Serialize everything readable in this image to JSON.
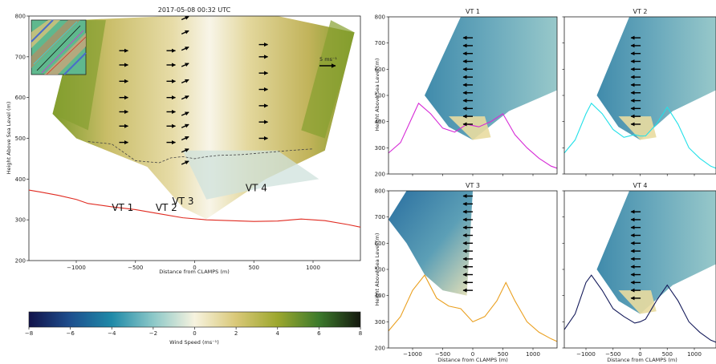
{
  "chart_data": [
    {
      "type": "heatmap",
      "title": "2017-05-08 00:32 UTC",
      "xlabel": "Distance from CLAMPS (m)",
      "ylabel": "Height Above Sea Level (m)",
      "xlim": [
        -1400,
        1400
      ],
      "ylim": [
        200,
        800
      ],
      "xticks": [
        -1000,
        -500,
        0,
        500,
        1000
      ],
      "yticks": [
        200,
        300,
        400,
        500,
        600,
        700,
        800
      ],
      "annotations": [
        "VT 1",
        "VT 2",
        "VT 3",
        "VT 4"
      ],
      "ref_arrow_label": "5 ms⁻¹",
      "terrain_line": {
        "color": "#e02a20",
        "x": [
          -1400,
          -1300,
          -1150,
          -1000,
          -900,
          -700,
          -500,
          -300,
          -100,
          100,
          300,
          500,
          700,
          900,
          1100,
          1300,
          1400
        ],
        "y": [
          373,
          368,
          360,
          350,
          340,
          332,
          325,
          315,
          305,
          300,
          298,
          296,
          297,
          302,
          298,
          288,
          282
        ]
      },
      "dashed_line": {
        "x": [
          -900,
          -700,
          -500,
          -300,
          -200,
          -100,
          0,
          100,
          200,
          400,
          600,
          800,
          1000
        ],
        "y": [
          492,
          486,
          445,
          440,
          452,
          455,
          450,
          455,
          458,
          460,
          465,
          470,
          474
        ]
      },
      "vectors": [
        {
          "x": -600,
          "y": [
            490,
            530,
            565,
            600,
            640,
            680,
            715
          ],
          "direction": "east"
        },
        {
          "x": -200,
          "y": [
            490,
            530,
            565,
            600,
            640,
            680,
            715
          ],
          "direction": "east"
        },
        {
          "x": -80,
          "y": [
            440,
            470,
            500,
            530,
            560,
            600,
            640,
            680,
            720,
            760,
            795
          ],
          "direction": "northeast"
        },
        {
          "x": 580,
          "y": [
            500,
            540,
            580,
            620,
            660,
            700,
            730
          ],
          "direction": "east"
        }
      ]
    },
    {
      "type": "heatmap",
      "title": "VT 1",
      "xlabel": "Distance from CLAMPS (m)",
      "ylabel": "Height Above Sea Level (m)",
      "xlim": [
        -1400,
        1400
      ],
      "ylim": [
        200,
        800
      ],
      "yticks": [
        200,
        300,
        400,
        500,
        600,
        700,
        800
      ],
      "terrain_line": {
        "color": "#d62ad6",
        "x": [
          -1400,
          -1200,
          -1000,
          -900,
          -700,
          -500,
          -300,
          -100,
          0,
          100,
          300,
          500,
          700,
          900,
          1100,
          1300,
          1400
        ],
        "y": [
          280,
          320,
          420,
          470,
          430,
          375,
          360,
          390,
          385,
          380,
          400,
          430,
          350,
          300,
          260,
          230,
          222
        ]
      }
    },
    {
      "type": "heatmap",
      "title": "VT 2",
      "xlim": [
        -1400,
        1400
      ],
      "ylim": [
        200,
        800
      ],
      "terrain_line": {
        "color": "#22e0e8",
        "x": [
          -1400,
          -1200,
          -1000,
          -900,
          -700,
          -500,
          -300,
          -100,
          0,
          100,
          300,
          500,
          700,
          900,
          1100,
          1300,
          1400
        ],
        "y": [
          280,
          330,
          430,
          470,
          430,
          370,
          340,
          350,
          345,
          345,
          390,
          455,
          390,
          300,
          260,
          230,
          222
        ]
      }
    },
    {
      "type": "heatmap",
      "title": "VT 3",
      "xlabel": "Distance from CLAMPS (m)",
      "ylabel": "Height Above Sea Level (m)",
      "xlim": [
        -1400,
        1400
      ],
      "ylim": [
        200,
        800
      ],
      "xticks": [
        -1000,
        -500,
        0,
        500,
        1000
      ],
      "yticks": [
        200,
        300,
        400,
        500,
        600,
        700,
        800
      ],
      "terrain_line": {
        "color": "#eaa020",
        "x": [
          -1400,
          -1200,
          -1000,
          -800,
          -600,
          -400,
          -200,
          0,
          200,
          400,
          550,
          700,
          900,
          1100,
          1300,
          1400
        ],
        "y": [
          265,
          320,
          420,
          478,
          390,
          360,
          350,
          300,
          320,
          380,
          450,
          380,
          300,
          260,
          235,
          225
        ]
      }
    },
    {
      "type": "heatmap",
      "title": "VT 4",
      "xlabel": "Distance from CLAMPS (m)",
      "xlim": [
        -1400,
        1400
      ],
      "ylim": [
        200,
        800
      ],
      "xticks": [
        -1000,
        -500,
        0,
        500,
        1000
      ],
      "terrain_line": {
        "color": "#141a5a",
        "x": [
          -1400,
          -1200,
          -1000,
          -900,
          -700,
          -500,
          -300,
          -100,
          0,
          100,
          300,
          500,
          700,
          900,
          1100,
          1300,
          1400
        ],
        "y": [
          270,
          330,
          450,
          478,
          420,
          350,
          320,
          295,
          300,
          310,
          380,
          440,
          380,
          300,
          260,
          230,
          222
        ]
      }
    }
  ],
  "colorbar": {
    "label": "Wind Speed (ms⁻¹)",
    "range": [
      -8,
      8
    ],
    "ticks": [
      -8,
      -6,
      -4,
      -2,
      0,
      2,
      4,
      6,
      8
    ],
    "colors": [
      "#11124a",
      "#1e4f8e",
      "#1f8aa8",
      "#8cc8c8",
      "#f7f3df",
      "#d9c878",
      "#9ca72e",
      "#3c7a2c",
      "#14180e"
    ]
  }
}
